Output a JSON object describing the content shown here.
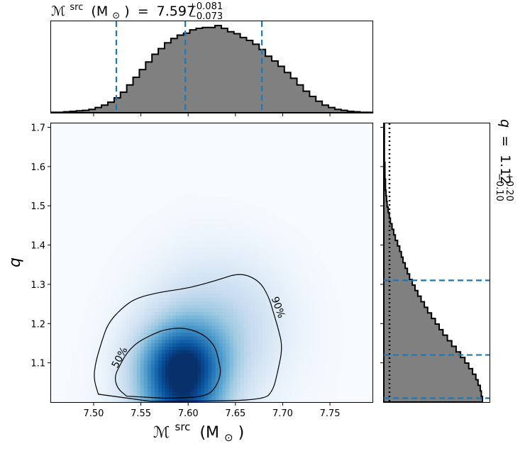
{
  "chart_data": {
    "type": "scatter",
    "kind": "corner-plot",
    "x_parameter": {
      "symbol": "ℳ",
      "superscript": "src",
      "unit": "(M",
      "unit_sub": "⊙",
      "unit_close": ")",
      "median": "7.597",
      "plus": "+0.081",
      "minus": "−0.073",
      "quantiles": [
        7.524,
        7.597,
        7.678
      ]
    },
    "y_parameter": {
      "symbol": "q",
      "median": "1.12",
      "plus": "+0.20",
      "minus": "−0.10",
      "quantiles": [
        1.01,
        1.12,
        1.31
      ]
    },
    "joint": {
      "xlim": [
        7.455,
        7.795
      ],
      "ylim": [
        1.0,
        1.71
      ],
      "x_ticks": [
        "7.50",
        "7.55",
        "7.60",
        "7.65",
        "7.70",
        "7.75"
      ],
      "y_ticks": [
        "1.1",
        "1.2",
        "1.3",
        "1.4",
        "1.5",
        "1.6",
        "1.7"
      ],
      "density_peak": {
        "x": 7.592,
        "y": 1.075
      },
      "contour_levels": [
        "50%",
        "90%"
      ],
      "contours": [
        {
          "label": "50%",
          "points": [
            [
              7.535,
              1.015
            ],
            [
              7.525,
              1.035
            ],
            [
              7.522,
              1.065
            ],
            [
              7.528,
              1.095
            ],
            [
              7.535,
              1.125
            ],
            [
              7.545,
              1.15
            ],
            [
              7.56,
              1.17
            ],
            [
              7.575,
              1.185
            ],
            [
              7.595,
              1.19
            ],
            [
              7.615,
              1.175
            ],
            [
              7.628,
              1.145
            ],
            [
              7.632,
              1.11
            ],
            [
              7.635,
              1.075
            ],
            [
              7.63,
              1.04
            ],
            [
              7.62,
              1.015
            ],
            [
              7.59,
              1.01
            ],
            [
              7.56,
              1.01
            ]
          ]
        },
        {
          "label": "90%",
          "points": [
            [
              7.505,
              1.02
            ],
            [
              7.5,
              1.06
            ],
            [
              7.502,
              1.1
            ],
            [
              7.508,
              1.15
            ],
            [
              7.515,
              1.2
            ],
            [
              7.53,
              1.24
            ],
            [
              7.545,
              1.265
            ],
            [
              7.57,
              1.28
            ],
            [
              7.6,
              1.29
            ],
            [
              7.63,
              1.31
            ],
            [
              7.655,
              1.33
            ],
            [
              7.675,
              1.31
            ],
            [
              7.685,
              1.27
            ],
            [
              7.69,
              1.23
            ],
            [
              7.695,
              1.19
            ],
            [
              7.7,
              1.14
            ],
            [
              7.695,
              1.08
            ],
            [
              7.69,
              1.03
            ],
            [
              7.68,
              1.005
            ],
            [
              7.6,
              1.002
            ],
            [
              7.52,
              1.002
            ]
          ]
        }
      ]
    },
    "top_marginal": {
      "x_start": 7.455,
      "bin_width": 0.00667,
      "counts": [
        1,
        1,
        2,
        3,
        4,
        5,
        7,
        11,
        16,
        22,
        31,
        43,
        58,
        74,
        90,
        106,
        122,
        134,
        146,
        155,
        162,
        166,
        173,
        176,
        178,
        178,
        182,
        176,
        169,
        165,
        157,
        151,
        143,
        132,
        118,
        108,
        97,
        84,
        72,
        58,
        45,
        34,
        24,
        16,
        11,
        7,
        5,
        3,
        2,
        1,
        1
      ]
    },
    "right_marginal": {
      "y_start": 1.0,
      "bin_width": 0.0142,
      "counts": [
        180,
        178,
        176,
        172,
        168,
        162,
        155,
        148,
        140,
        132,
        124,
        116,
        108,
        101,
        94,
        87,
        80,
        74,
        68,
        62,
        57,
        52,
        47,
        43,
        39,
        35,
        32,
        29,
        25,
        21,
        18,
        15,
        12,
        10,
        8,
        6,
        5,
        4,
        3,
        3,
        2,
        2,
        2,
        1,
        1,
        1,
        1,
        1,
        1,
        1
      ]
    }
  }
}
